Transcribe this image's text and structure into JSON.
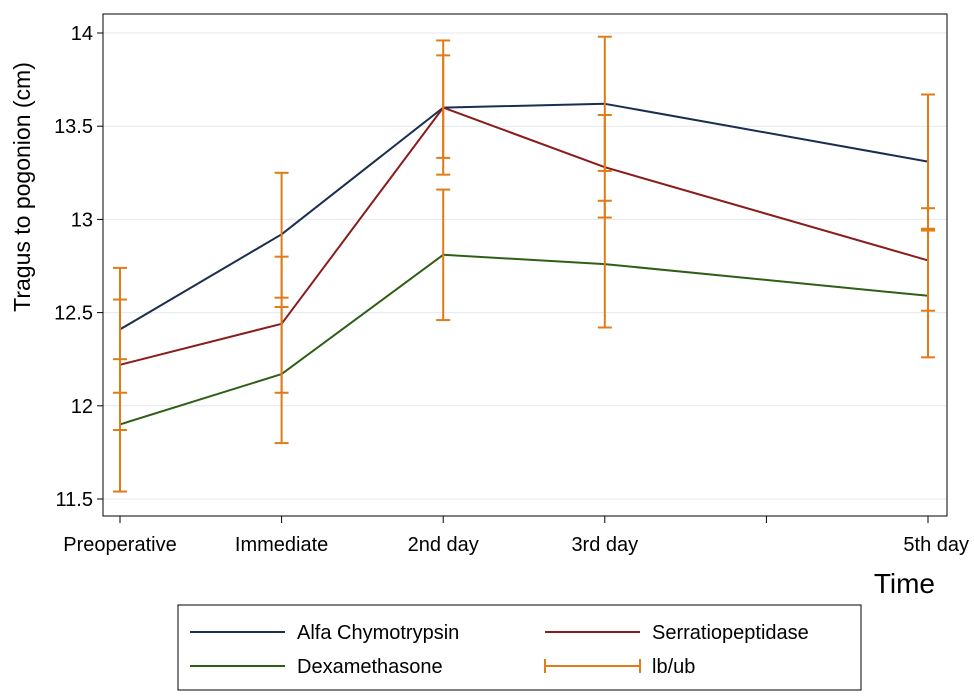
{
  "chart_data": {
    "type": "line",
    "title": "",
    "xlabel": "Time",
    "ylabel": "Tragus to pogonion (cm)",
    "x": [
      0,
      1,
      2,
      3,
      5
    ],
    "x_tick_values": [
      0,
      1,
      2,
      3,
      4,
      5
    ],
    "categories": [
      "Preoperative",
      "Immediate",
      "2nd day",
      "3rd day",
      "5th day"
    ],
    "ylim": [
      11.45,
      14.05
    ],
    "y_ticks": [
      11.5,
      12,
      12.5,
      13,
      13.5,
      14
    ],
    "y_tick_labels": [
      "11.5",
      "12",
      "12.5",
      "13",
      "13.5",
      "14"
    ],
    "grid": true,
    "series": [
      {
        "name": "Alfa Chymotrypsin",
        "color": "#1a2f4f",
        "values": [
          12.41,
          12.92,
          13.6,
          13.62,
          13.31
        ],
        "lb": [
          12.07,
          12.58,
          13.24,
          13.26,
          12.95
        ],
        "ub": [
          12.74,
          13.25,
          13.96,
          13.98,
          13.67
        ]
      },
      {
        "name": "Serratiopeptidase",
        "color": "#8b1c1c",
        "values": [
          12.22,
          12.44,
          13.6,
          13.28,
          12.78
        ],
        "lb": [
          11.87,
          12.07,
          13.33,
          13.01,
          12.51
        ],
        "ub": [
          12.57,
          12.8,
          13.88,
          13.56,
          13.06
        ]
      },
      {
        "name": "Dexamethasone",
        "color": "#2f5f16",
        "values": [
          11.9,
          12.17,
          12.81,
          12.76,
          12.59
        ],
        "lb": [
          11.54,
          11.8,
          12.46,
          12.42,
          12.26
        ],
        "ub": [
          12.25,
          12.53,
          13.16,
          13.1,
          12.94
        ]
      }
    ],
    "errorbar_color": "#e07b18",
    "legend": {
      "position": "bottom",
      "entries": [
        {
          "label": "Alfa Chymotrypsin",
          "kind": "line",
          "color": "#1a2f4f"
        },
        {
          "label": "Serratiopeptidase",
          "kind": "line",
          "color": "#8b1c1c"
        },
        {
          "label": "Dexamethasone",
          "kind": "line",
          "color": "#2f5f16"
        },
        {
          "label": "lb/ub",
          "kind": "errorbar",
          "color": "#e07b18"
        }
      ]
    }
  }
}
